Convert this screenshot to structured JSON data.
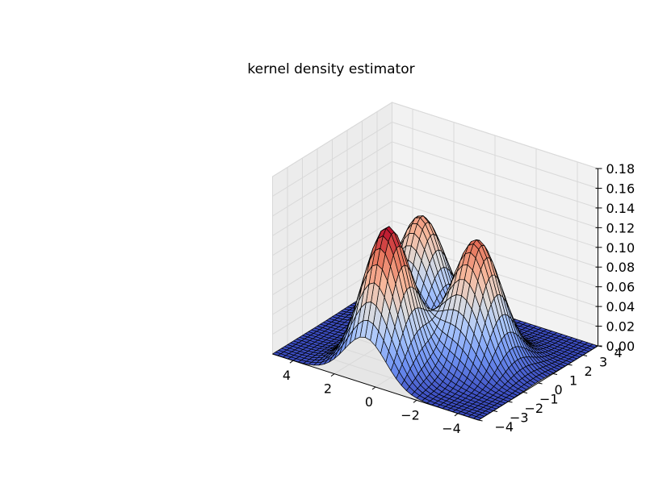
{
  "chart_data": {
    "type": "surface3d",
    "title": "kernel density estimator",
    "colormap": "coolwarm",
    "colormap_stops": [
      "#3b4cc0",
      "#6f92f3",
      "#aac7fd",
      "#dddcdc",
      "#f7b89c",
      "#e7745b",
      "#b40426"
    ],
    "background_pane_color": "#f2f2f2",
    "edge_color": "#000000",
    "x_ticks": [
      -4,
      -2,
      0,
      2,
      4
    ],
    "x_tick_labels": [
      "−4",
      "−2",
      "0",
      "2",
      "4"
    ],
    "y_ticks": [
      -4,
      -3,
      -2,
      -1,
      0,
      1,
      2,
      3,
      4
    ],
    "y_tick_labels": [
      "−4",
      "−3",
      "−2",
      "−1",
      "0",
      "1",
      "2",
      "3",
      "4"
    ],
    "z_ticks": [
      0.0,
      0.02,
      0.04,
      0.06,
      0.08,
      0.1,
      0.12,
      0.14,
      0.16,
      0.18
    ],
    "z_tick_labels": [
      "0.00",
      "0.02",
      "0.04",
      "0.06",
      "0.08",
      "0.10",
      "0.12",
      "0.14",
      "0.16",
      "0.18"
    ],
    "xlim": [
      -5,
      5
    ],
    "ylim": [
      -4,
      4
    ],
    "zlim": [
      0,
      0.18
    ],
    "grid": true,
    "surface_grid_size": 40,
    "kernel_components": [
      {
        "x": 0.5,
        "y": -2.5,
        "sx": 1.0,
        "sy": 1.0,
        "weight": 0.145
      },
      {
        "x": -2.0,
        "y": 0.0,
        "sx": 1.0,
        "sy": 1.0,
        "weight": 0.125
      },
      {
        "x": 1.8,
        "y": 1.5,
        "sx": 1.0,
        "sy": 1.0,
        "weight": 0.11
      }
    ]
  }
}
